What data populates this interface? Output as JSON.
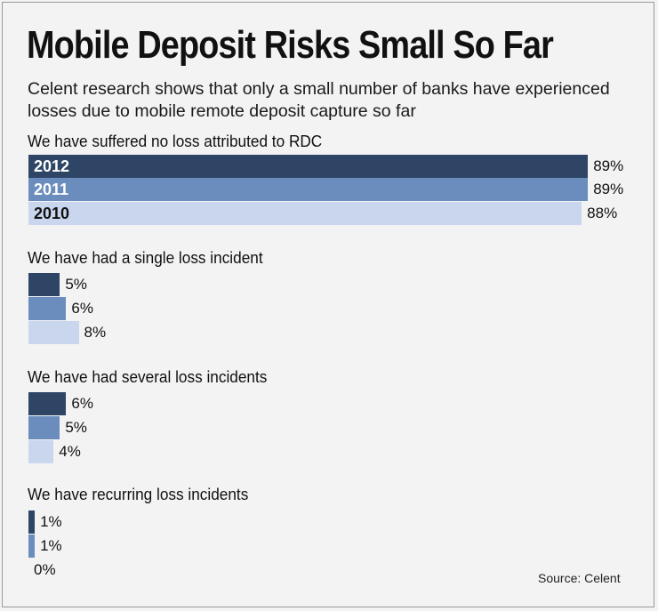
{
  "title": "Mobile Deposit Risks Small So Far",
  "subtitle": "Celent research shows that only a small number of banks have experienced losses due to mobile remote deposit capture so far",
  "source": "Source: Celent",
  "colors": {
    "2012": "#2e4566",
    "2011": "#6b8dbd",
    "2010": "#c9d6ee",
    "year_text_2012": "#ffffff",
    "year_text_2011": "#ffffff",
    "year_text_2010": "#111111"
  },
  "chart_data": {
    "type": "bar",
    "orientation": "horizontal",
    "title": "Mobile Deposit Risks Small So Far",
    "subtitle": "Celent research shows that only a small number of banks have experienced losses due to mobile remote deposit capture so far",
    "categories": [
      "We have suffered no loss attributed to RDC",
      "We have had a single loss incident",
      "We have had several loss incidents",
      "We have recurring loss incidents"
    ],
    "series": [
      {
        "name": "2012",
        "values": [
          89,
          5,
          6,
          1
        ]
      },
      {
        "name": "2011",
        "values": [
          89,
          6,
          5,
          1
        ]
      },
      {
        "name": "2010",
        "values": [
          88,
          8,
          4,
          0
        ]
      }
    ],
    "value_suffix": "%",
    "xlim": [
      0,
      100
    ],
    "grid": false,
    "legend": "inline labels on first group bars"
  }
}
